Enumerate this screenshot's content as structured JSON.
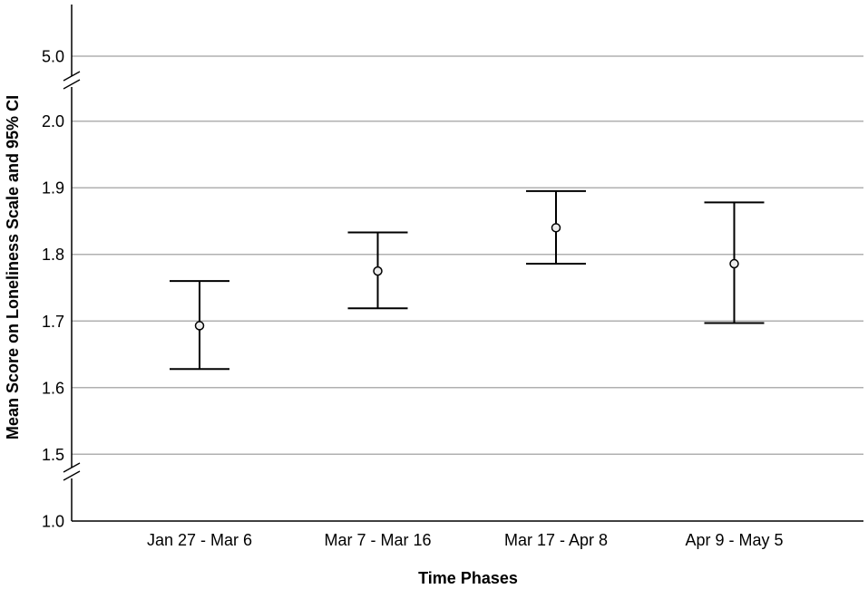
{
  "chart_data": {
    "type": "scatter",
    "title": "",
    "xlabel": "Time Phases",
    "ylabel": "Mean Score on Loneliness Scale and 95% CI",
    "categories": [
      "Jan 27 - Mar 6",
      "Mar 7 - Mar 16",
      "Mar 17 - Apr 8",
      "Apr 9 - May 5"
    ],
    "series": [
      {
        "mean": [
          1.693,
          1.775,
          1.84,
          1.786
        ],
        "ci_lower": [
          1.628,
          1.719,
          1.786,
          1.697
        ],
        "ci_upper": [
          1.76,
          1.833,
          1.895,
          1.878
        ]
      }
    ],
    "y_ticks": [
      "1.0",
      "1.5",
      "1.6",
      "1.7",
      "1.8",
      "1.9",
      "2.0",
      "5.0"
    ],
    "y_scale": "broken axis: 1.0 to 1.5 compressed, 1.5 to 2.0 linear, break, 5.0",
    "grid": true
  }
}
